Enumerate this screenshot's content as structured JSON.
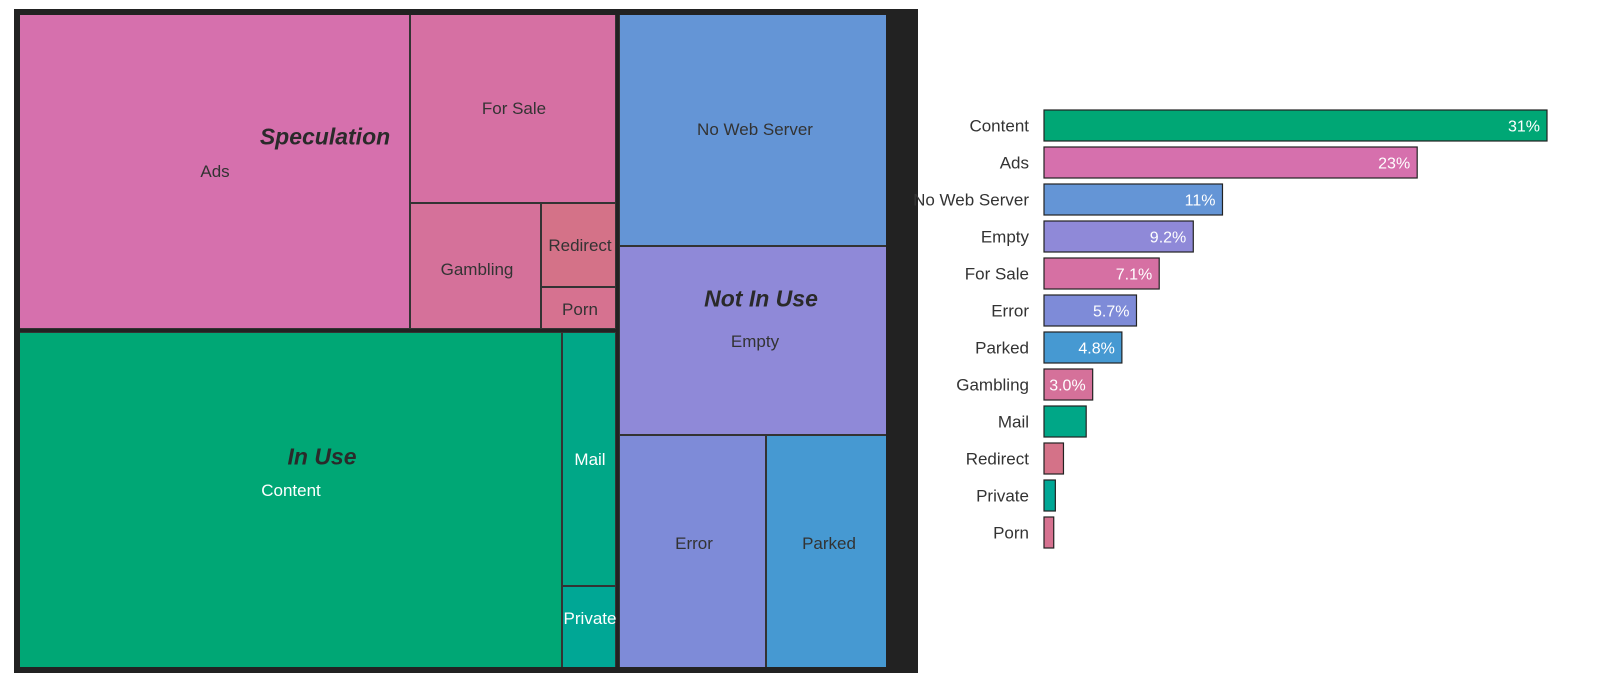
{
  "chart_data": [
    {
      "type": "treemap",
      "groups": [
        {
          "name": "Speculation",
          "items": [
            "Ads",
            "For Sale",
            "Gambling",
            "Redirect",
            "Porn"
          ]
        },
        {
          "name": "In Use",
          "items": [
            "Content",
            "Mail",
            "Private"
          ]
        },
        {
          "name": "Not In Use",
          "items": [
            "No Web Server",
            "Empty",
            "Error",
            "Parked"
          ]
        }
      ],
      "cells": [
        {
          "name": "Ads",
          "group": "Speculation",
          "color": "#d670ad",
          "text_color": "#333333"
        },
        {
          "name": "For Sale",
          "group": "Speculation",
          "color": "#d670a3",
          "text_color": "#333333"
        },
        {
          "name": "Gambling",
          "group": "Speculation",
          "color": "#d5719a",
          "text_color": "#333333"
        },
        {
          "name": "Redirect",
          "group": "Speculation",
          "color": "#d47288",
          "text_color": "#333333"
        },
        {
          "name": "Porn",
          "group": "Speculation",
          "color": "#d67290",
          "text_color": "#333333"
        },
        {
          "name": "Content",
          "group": "In Use",
          "color": "#00a775",
          "text_color": "#ffffff"
        },
        {
          "name": "Mail",
          "group": "In Use",
          "color": "#00a787",
          "text_color": "#ffffff"
        },
        {
          "name": "Private",
          "group": "In Use",
          "color": "#00a795",
          "text_color": "#ffffff"
        },
        {
          "name": "No Web Server",
          "group": "Not In Use",
          "color": "#6495d6",
          "text_color": "#333333"
        },
        {
          "name": "Empty",
          "group": "Not In Use",
          "color": "#8f89d8",
          "text_color": "#333333"
        },
        {
          "name": "Error",
          "group": "Not In Use",
          "color": "#7e8bd8",
          "text_color": "#333333"
        },
        {
          "name": "Parked",
          "group": "Not In Use",
          "color": "#4699d2",
          "text_color": "#333333"
        }
      ]
    },
    {
      "type": "bar",
      "orientation": "horizontal",
      "categories": [
        "Content",
        "Ads",
        "No Web Server",
        "Empty",
        "For Sale",
        "Error",
        "Parked",
        "Gambling",
        "Mail",
        "Redirect",
        "Private",
        "Porn"
      ],
      "values": [
        31,
        23,
        11,
        9.2,
        7.1,
        5.7,
        4.8,
        3.0,
        2.6,
        1.2,
        0.7,
        0.6
      ],
      "value_labels": [
        "31%",
        "23%",
        "11%",
        "9.2%",
        "7.1%",
        "5.7%",
        "4.8%",
        "3.0%",
        "",
        "",
        "",
        ""
      ],
      "colors": [
        "#00a775",
        "#d670ad",
        "#6495d6",
        "#8f89d8",
        "#d670a3",
        "#7e8bd8",
        "#4699d2",
        "#d5719a",
        "#00a787",
        "#d47288",
        "#00a795",
        "#d67290"
      ],
      "xlim": [
        0,
        31
      ]
    }
  ]
}
